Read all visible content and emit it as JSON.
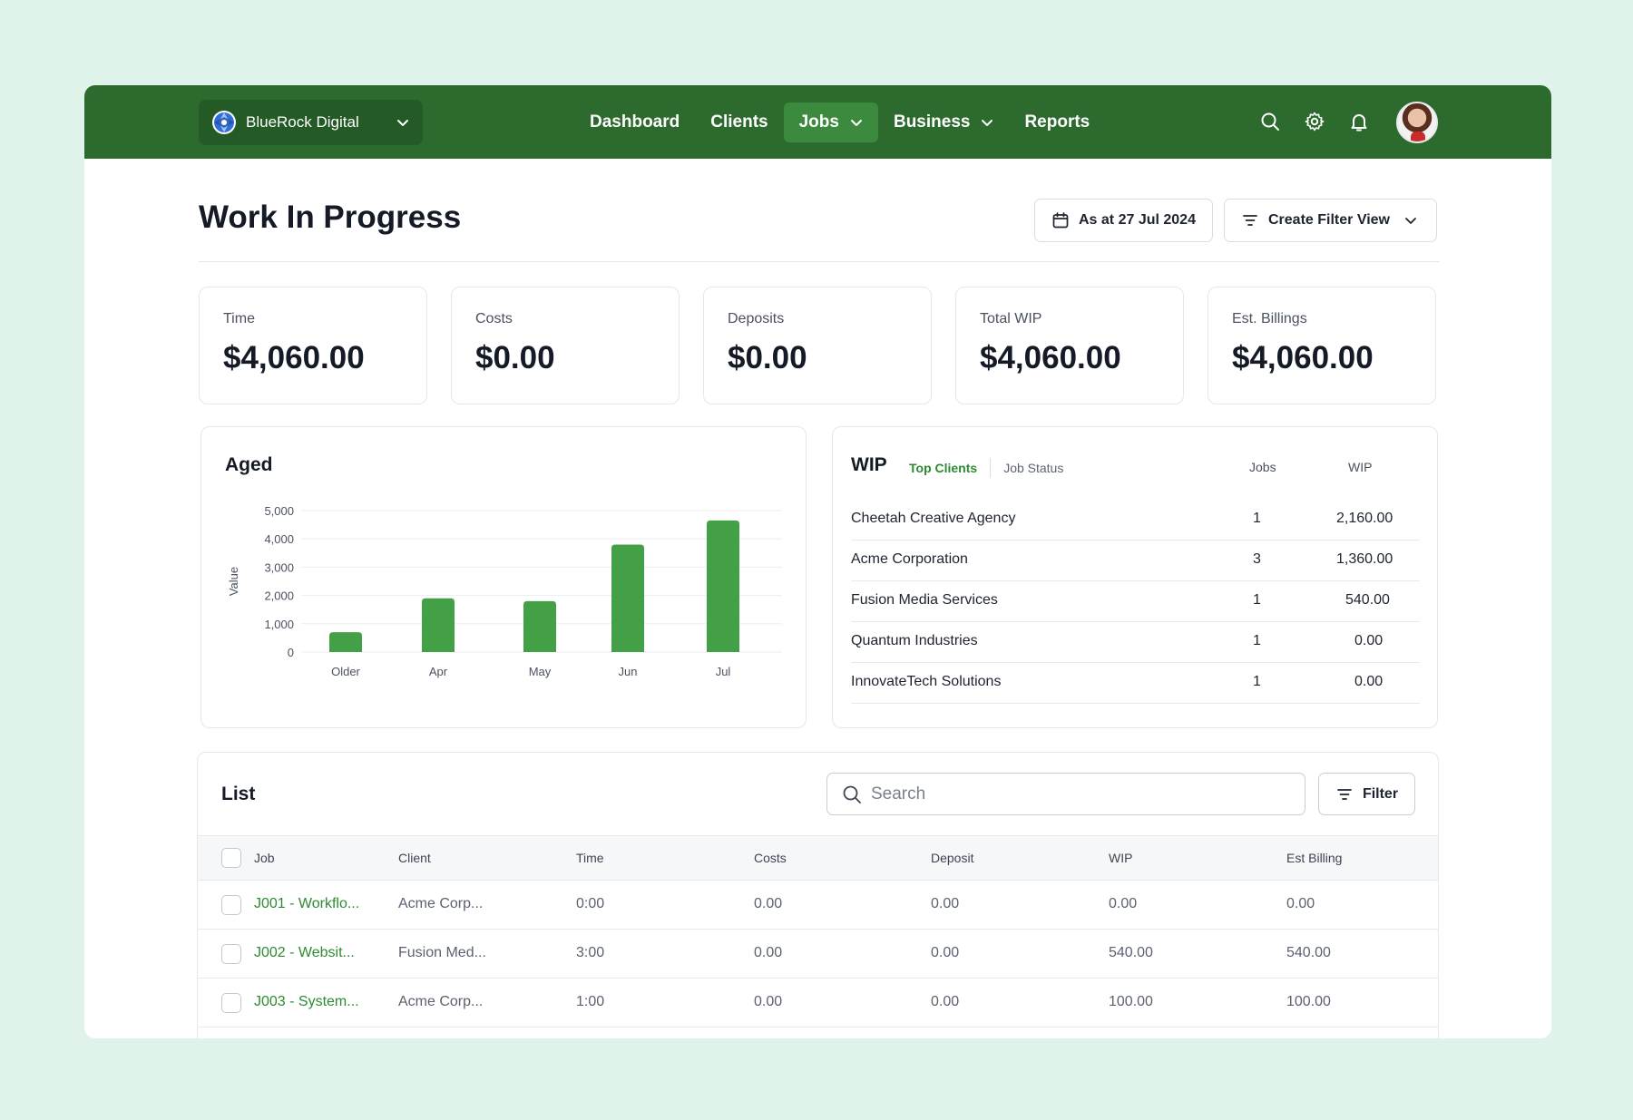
{
  "topbar": {
    "org_name": "BlueRock Digital",
    "nav": [
      {
        "label": "Dashboard",
        "active": false,
        "has_dropdown": false
      },
      {
        "label": "Clients",
        "active": false,
        "has_dropdown": false
      },
      {
        "label": "Jobs",
        "active": true,
        "has_dropdown": true
      },
      {
        "label": "Business",
        "active": false,
        "has_dropdown": true
      },
      {
        "label": "Reports",
        "active": false,
        "has_dropdown": false
      }
    ],
    "icons": [
      "search-icon",
      "gear-icon",
      "bell-icon"
    ]
  },
  "header": {
    "title": "Work In Progress",
    "date_button": "As at 27 Jul 2024",
    "filter_view_button": "Create Filter View"
  },
  "stats": [
    {
      "label": "Time",
      "value": "$4,060.00"
    },
    {
      "label": "Costs",
      "value": "$0.00"
    },
    {
      "label": "Deposits",
      "value": "$0.00"
    },
    {
      "label": "Total WIP",
      "value": "$4,060.00"
    },
    {
      "label": "Est. Billings",
      "value": "$4,060.00"
    }
  ],
  "aged": {
    "title": "Aged"
  },
  "chart_data": {
    "type": "bar",
    "title": "Aged",
    "categories": [
      "Older",
      "Apr",
      "May",
      "Jun",
      "Jul"
    ],
    "values": [
      700,
      1900,
      1800,
      3800,
      4650
    ],
    "ylabel": "Value",
    "xlabel": "",
    "ylim": [
      0,
      5000
    ],
    "yticks": [
      "0",
      "1,000",
      "2,000",
      "3,000",
      "4,000",
      "5,000"
    ],
    "grid": true,
    "bar_color": "#43a047"
  },
  "wip": {
    "title": "WIP",
    "tabs": [
      "Top Clients",
      "Job Status"
    ],
    "columns": [
      "Jobs",
      "WIP"
    ],
    "rows": [
      {
        "client": "Cheetah Creative Agency",
        "jobs": "1",
        "wip": "2,160.00"
      },
      {
        "client": "Acme Corporation",
        "jobs": "3",
        "wip": "1,360.00"
      },
      {
        "client": "Fusion Media Services",
        "jobs": "1",
        "wip": "540.00"
      },
      {
        "client": "Quantum Industries",
        "jobs": "1",
        "wip": "0.00"
      },
      {
        "client": "InnovateTech Solutions",
        "jobs": "1",
        "wip": "0.00"
      }
    ]
  },
  "list": {
    "title": "List",
    "search_placeholder": "Search",
    "filter_label": "Filter",
    "columns": [
      "Job",
      "Client",
      "Time",
      "Costs",
      "Deposit",
      "WIP",
      "Est Billing"
    ],
    "rows": [
      {
        "job": "J001 - Workflo...",
        "client": "Acme Corp...",
        "time": "0:00",
        "costs": "0.00",
        "deposit": "0.00",
        "wip": "0.00",
        "est_billing": "0.00"
      },
      {
        "job": "J002 - Websit...",
        "client": "Fusion Med...",
        "time": "3:00",
        "costs": "0.00",
        "deposit": "0.00",
        "wip": "540.00",
        "est_billing": "540.00"
      },
      {
        "job": "J003 - System...",
        "client": "Acme Corp...",
        "time": "1:00",
        "costs": "0.00",
        "deposit": "0.00",
        "wip": "100.00",
        "est_billing": "100.00"
      }
    ]
  },
  "colors": {
    "brand_green": "#2d6a2e",
    "accent_green": "#2d8a31",
    "background": "#dff3ea"
  }
}
